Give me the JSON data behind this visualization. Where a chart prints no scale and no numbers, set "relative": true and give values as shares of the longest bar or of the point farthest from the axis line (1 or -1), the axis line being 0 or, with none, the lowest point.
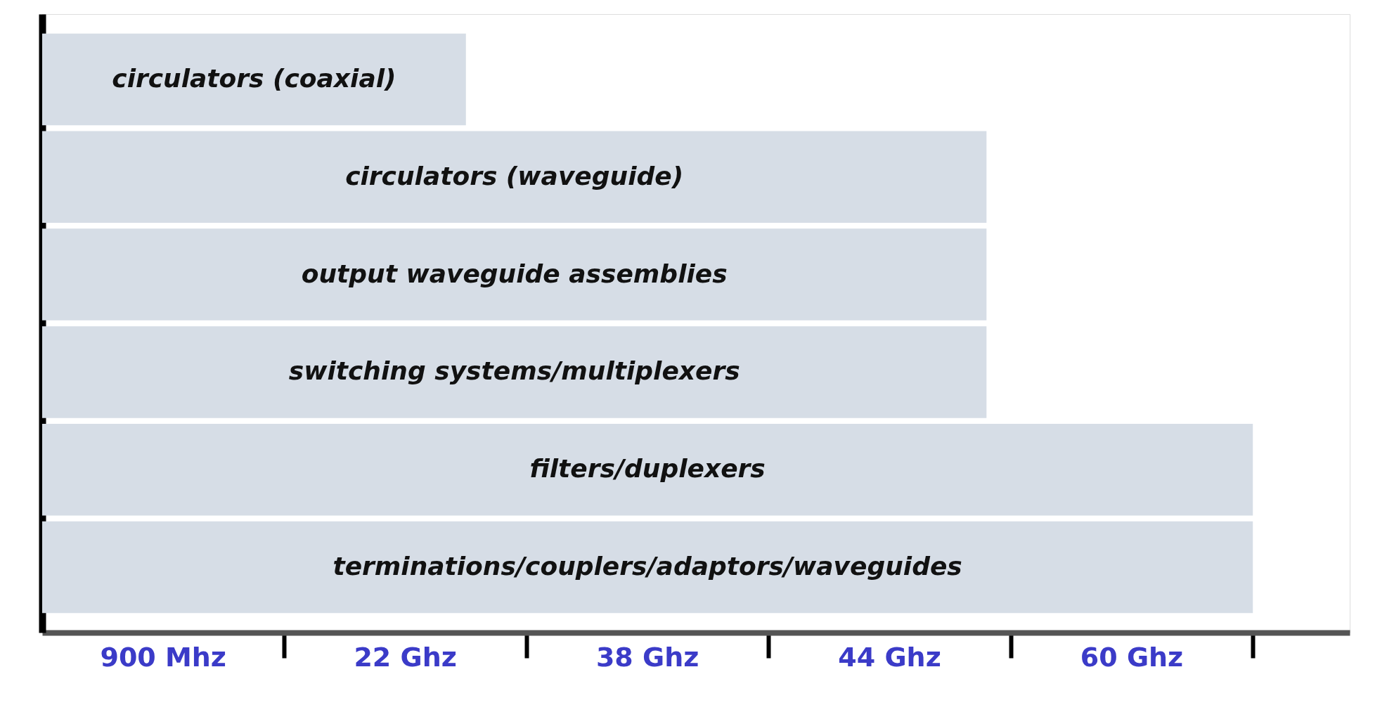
{
  "chart_data": {
    "type": "bar",
    "orientation": "horizontal",
    "relative": true,
    "categories": [
      "circulators (coaxial)",
      "circulators (waveguide)",
      "output waveguide assemblies",
      "switching systems/multiplexers",
      "filters/duplexers",
      "terminations/couplers/adaptors/waveguides"
    ],
    "values": [
      0.35,
      0.78,
      0.78,
      0.78,
      1,
      1
    ],
    "color": "#d6dde6",
    "annotations": [
      "900 Mhz",
      "22 Ghz",
      "38 Ghz",
      "44 Ghz",
      "60 Ghz"
    ],
    "grid": false
  }
}
